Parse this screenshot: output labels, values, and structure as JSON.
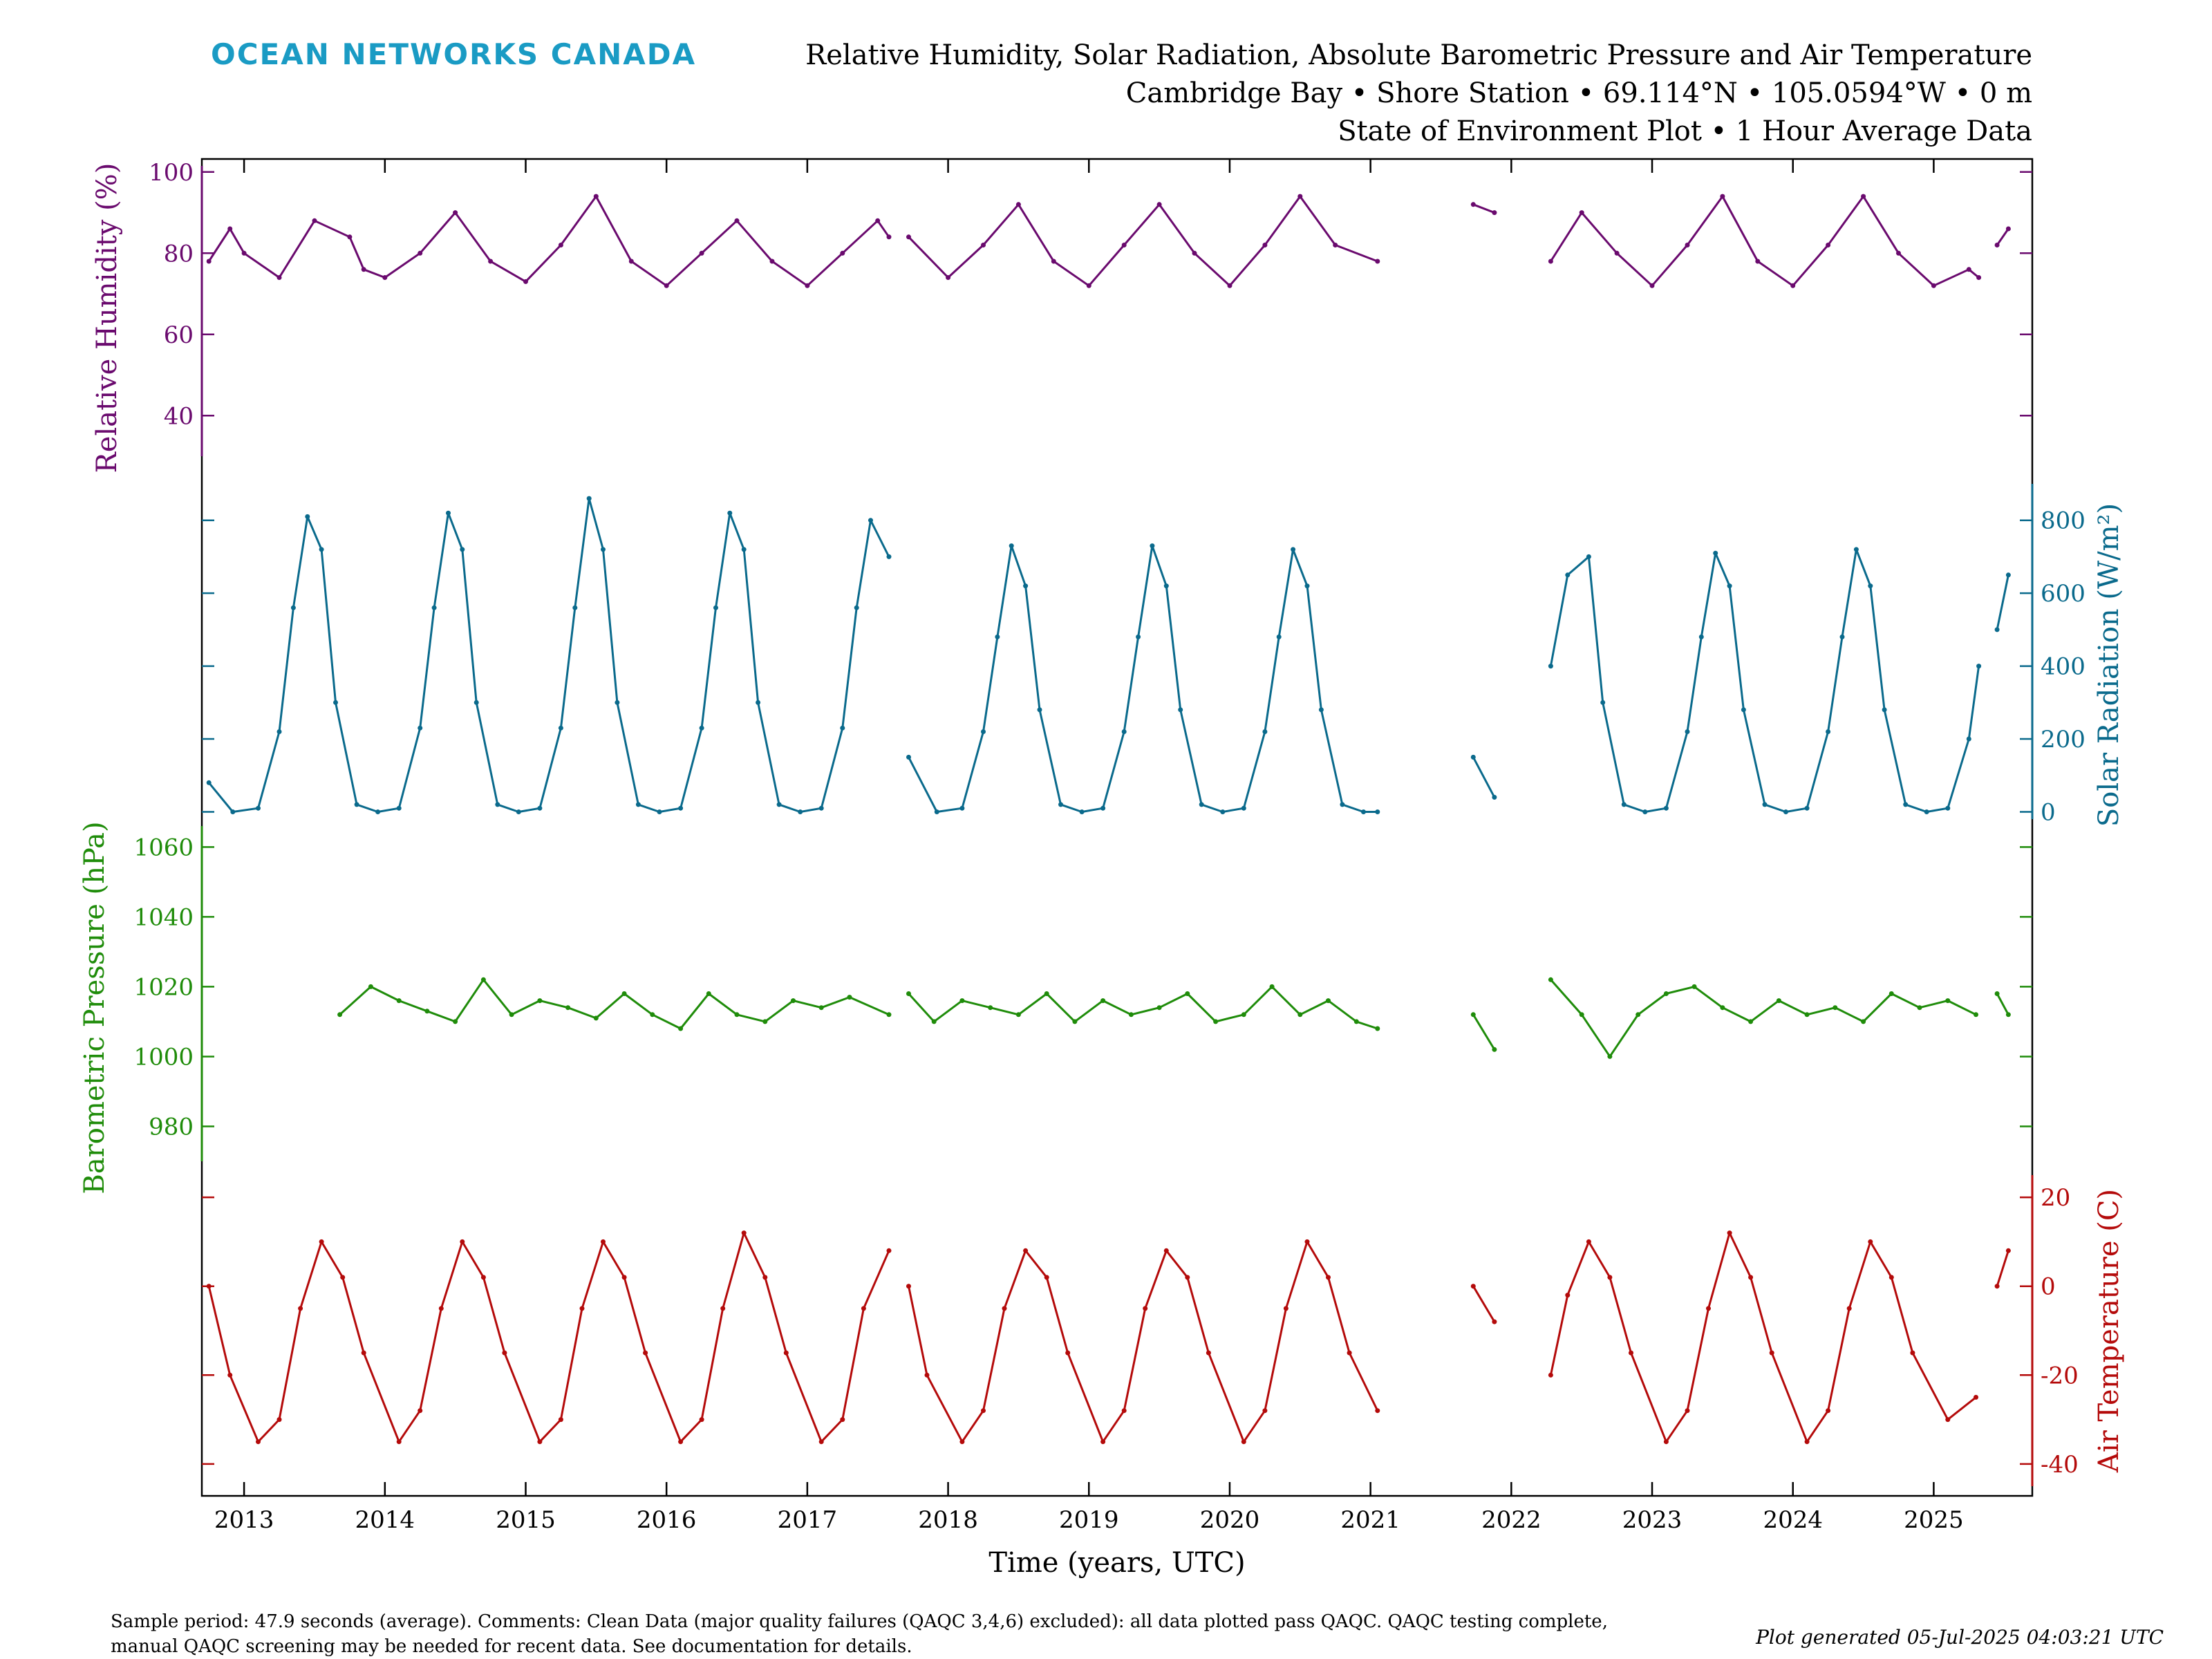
{
  "header": {
    "logo": "OCEAN NETWORKS CANADA",
    "title_lines": [
      "Relative Humidity, Solar Radiation, Absolute Barometric Pressure and Air Temperature",
      "Cambridge Bay • Shore Station • 69.114°N • 105.0594°W • 0 m",
      "State of Environment Plot • 1 Hour Average Data"
    ]
  },
  "footer": {
    "comment_lines": [
      "Sample period: 47.9 seconds (average).  Comments: Clean Data (major quality failures (QAQC 3,4,6) excluded): all data plotted pass QAQC. QAQC testing complete,",
      "manual QAQC screening may be needed for recent data. See documentation for details."
    ],
    "generated": "Plot generated 05-Jul-2025 04:03:21 UTC"
  },
  "chart_data": {
    "type": "line",
    "xlabel": "Time (years, UTC)",
    "xlim": [
      2012.7,
      2025.7
    ],
    "x_ticks": [
      2013,
      2014,
      2015,
      2016,
      2017,
      2018,
      2019,
      2020,
      2021,
      2022,
      2023,
      2024,
      2025
    ],
    "x_tick_labels": [
      "2013",
      "2014",
      "2015",
      "2016",
      "2017",
      "2018",
      "2019",
      "2020",
      "2021",
      "2022",
      "2023",
      "2024",
      "2025"
    ],
    "series": [
      {
        "name": "Relative Humidity",
        "ylabel": "Relative Humidity (%)",
        "color": "#6a0a6e",
        "axis_side": "left",
        "ylim": [
          30,
          101.5
        ],
        "y_ticks": [
          40,
          60,
          80,
          100
        ],
        "y_tick_labels": [
          "40",
          "60",
          "80",
          "100"
        ],
        "x": [
          2012.75,
          2012.9,
          2013.0,
          2013.25,
          2013.5,
          2013.75,
          2013.85,
          2014.0,
          2014.25,
          2014.5,
          2014.75,
          2015.0,
          2015.25,
          2015.5,
          2015.75,
          2016.0,
          2016.25,
          2016.5,
          2016.75,
          2017.0,
          2017.25,
          2017.5,
          2017.58,
          null,
          2017.72,
          2018.0,
          2018.25,
          2018.5,
          2018.75,
          2019.0,
          2019.25,
          2019.5,
          2019.75,
          2020.0,
          2020.25,
          2020.5,
          2020.75,
          2021.05,
          null,
          2021.73,
          2021.88,
          null,
          2022.28,
          2022.5,
          2022.75,
          2023.0,
          2023.25,
          2023.5,
          2023.75,
          2024.0,
          2024.25,
          2024.5,
          2024.75,
          2025.0,
          2025.25,
          2025.32,
          null,
          2025.45,
          2025.53
        ],
        "y": [
          78,
          86,
          80,
          74,
          88,
          84,
          76,
          74,
          80,
          90,
          78,
          73,
          82,
          94,
          78,
          72,
          80,
          88,
          78,
          72,
          80,
          88,
          84,
          null,
          84,
          74,
          82,
          92,
          78,
          72,
          82,
          92,
          80,
          72,
          82,
          94,
          82,
          78,
          null,
          92,
          90,
          null,
          78,
          90,
          80,
          72,
          82,
          94,
          78,
          72,
          82,
          94,
          80,
          72,
          76,
          74,
          null,
          82,
          86
        ]
      },
      {
        "name": "Solar Radiation",
        "ylabel": "Solar Radiation (W/m²)",
        "color": "#0a6a8c",
        "axis_side": "right",
        "ylim": [
          -20,
          900
        ],
        "y_ticks": [
          0,
          200,
          400,
          600,
          800
        ],
        "y_tick_labels": [
          "0",
          "200",
          "400",
          "600",
          "800"
        ],
        "x": [
          2012.75,
          2012.92,
          2013.1,
          2013.25,
          2013.35,
          2013.45,
          2013.55,
          2013.65,
          2013.8,
          2013.95,
          2014.1,
          2014.25,
          2014.35,
          2014.45,
          2014.55,
          2014.65,
          2014.8,
          2014.95,
          2015.1,
          2015.25,
          2015.35,
          2015.45,
          2015.55,
          2015.65,
          2015.8,
          2015.95,
          2016.1,
          2016.25,
          2016.35,
          2016.45,
          2016.55,
          2016.65,
          2016.8,
          2016.95,
          2017.1,
          2017.25,
          2017.35,
          2017.45,
          2017.58,
          null,
          2017.72,
          2017.92,
          2018.1,
          2018.25,
          2018.35,
          2018.45,
          2018.55,
          2018.65,
          2018.8,
          2018.95,
          2019.1,
          2019.25,
          2019.35,
          2019.45,
          2019.55,
          2019.65,
          2019.8,
          2019.95,
          2020.1,
          2020.25,
          2020.35,
          2020.45,
          2020.55,
          2020.65,
          2020.8,
          2020.95,
          2021.05,
          null,
          2021.73,
          2021.88,
          null,
          2022.28,
          2022.4,
          2022.55,
          2022.65,
          2022.8,
          2022.95,
          2023.1,
          2023.25,
          2023.35,
          2023.45,
          2023.55,
          2023.65,
          2023.8,
          2023.95,
          2024.1,
          2024.25,
          2024.35,
          2024.45,
          2024.55,
          2024.65,
          2024.8,
          2024.95,
          2025.1,
          2025.25,
          2025.32,
          null,
          2025.45,
          2025.53
        ],
        "y": [
          80,
          0,
          10,
          220,
          560,
          810,
          720,
          300,
          20,
          0,
          10,
          230,
          560,
          820,
          720,
          300,
          20,
          0,
          10,
          230,
          560,
          860,
          720,
          300,
          20,
          0,
          10,
          230,
          560,
          820,
          720,
          300,
          20,
          0,
          10,
          230,
          560,
          800,
          700,
          null,
          150,
          0,
          10,
          220,
          480,
          730,
          620,
          280,
          20,
          0,
          10,
          220,
          480,
          730,
          620,
          280,
          20,
          0,
          10,
          220,
          480,
          720,
          620,
          280,
          20,
          0,
          0,
          null,
          150,
          40,
          null,
          400,
          650,
          700,
          300,
          20,
          0,
          10,
          220,
          480,
          710,
          620,
          280,
          20,
          0,
          10,
          220,
          480,
          720,
          620,
          280,
          20,
          0,
          10,
          200,
          400,
          null,
          500,
          650
        ]
      },
      {
        "name": "Barometric Pressure",
        "ylabel": "Barometric Pressure (hPa)",
        "color": "#1f8c0a",
        "axis_side": "left",
        "ylim": [
          970,
          1066
        ],
        "y_ticks": [
          980,
          1000,
          1020,
          1040,
          1060
        ],
        "y_tick_labels": [
          "980",
          "1000",
          "1020",
          "1040",
          "1060"
        ],
        "x": [
          2013.68,
          2013.9,
          2014.1,
          2014.3,
          2014.5,
          2014.7,
          2014.9,
          2015.1,
          2015.3,
          2015.5,
          2015.7,
          2015.9,
          2016.1,
          2016.3,
          2016.5,
          2016.7,
          2016.9,
          2017.1,
          2017.3,
          2017.58,
          null,
          2017.72,
          2017.9,
          2018.1,
          2018.3,
          2018.5,
          2018.7,
          2018.9,
          2019.1,
          2019.3,
          2019.5,
          2019.7,
          2019.9,
          2020.1,
          2020.3,
          2020.5,
          2020.7,
          2020.9,
          2021.05,
          null,
          2021.73,
          2021.88,
          null,
          2022.28,
          2022.5,
          2022.7,
          2022.9,
          2023.1,
          2023.3,
          2023.5,
          2023.7,
          2023.9,
          2024.1,
          2024.3,
          2024.5,
          2024.7,
          2024.9,
          2025.1,
          2025.3,
          null,
          2025.45,
          2025.53
        ],
        "y": [
          1012,
          1020,
          1016,
          1013,
          1010,
          1022,
          1012,
          1016,
          1014,
          1011,
          1018,
          1012,
          1008,
          1018,
          1012,
          1010,
          1016,
          1014,
          1017,
          1012,
          null,
          1018,
          1010,
          1016,
          1014,
          1012,
          1018,
          1010,
          1016,
          1012,
          1014,
          1018,
          1010,
          1012,
          1020,
          1012,
          1016,
          1010,
          1008,
          null,
          1012,
          1002,
          null,
          1022,
          1012,
          1000,
          1012,
          1018,
          1020,
          1014,
          1010,
          1016,
          1012,
          1014,
          1010,
          1018,
          1014,
          1016,
          1012,
          null,
          1018,
          1012
        ]
      },
      {
        "name": "Air Temperature",
        "ylabel": "Air Temperature (C)",
        "color": "#b40a0a",
        "axis_side": "right",
        "ylim": [
          -45,
          25
        ],
        "y_ticks": [
          -40,
          -20,
          0,
          20
        ],
        "y_tick_labels": [
          "-40",
          "-20",
          "0",
          "20"
        ],
        "x": [
          2012.75,
          2012.9,
          2013.1,
          2013.25,
          2013.4,
          2013.55,
          2013.7,
          2013.85,
          2014.1,
          2014.25,
          2014.4,
          2014.55,
          2014.7,
          2014.85,
          2015.1,
          2015.25,
          2015.4,
          2015.55,
          2015.7,
          2015.85,
          2016.1,
          2016.25,
          2016.4,
          2016.55,
          2016.7,
          2016.85,
          2017.1,
          2017.25,
          2017.4,
          2017.58,
          null,
          2017.72,
          2017.85,
          2018.1,
          2018.25,
          2018.4,
          2018.55,
          2018.7,
          2018.85,
          2019.1,
          2019.25,
          2019.4,
          2019.55,
          2019.7,
          2019.85,
          2020.1,
          2020.25,
          2020.4,
          2020.55,
          2020.7,
          2020.85,
          2021.05,
          null,
          2021.73,
          2021.88,
          null,
          2022.28,
          2022.4,
          2022.55,
          2022.7,
          2022.85,
          2023.1,
          2023.25,
          2023.4,
          2023.55,
          2023.7,
          2023.85,
          2024.1,
          2024.25,
          2024.4,
          2024.55,
          2024.7,
          2024.85,
          2025.1,
          2025.3,
          null,
          2025.45,
          2025.53
        ],
        "y": [
          0,
          -20,
          -35,
          -30,
          -5,
          10,
          2,
          -15,
          -35,
          -28,
          -5,
          10,
          2,
          -15,
          -35,
          -30,
          -5,
          10,
          2,
          -15,
          -35,
          -30,
          -5,
          12,
          2,
          -15,
          -35,
          -30,
          -5,
          8,
          null,
          0,
          -20,
          -35,
          -28,
          -5,
          8,
          2,
          -15,
          -35,
          -28,
          -5,
          8,
          2,
          -15,
          -35,
          -28,
          -5,
          10,
          2,
          -15,
          -28,
          null,
          0,
          -8,
          null,
          -20,
          -2,
          10,
          2,
          -15,
          -35,
          -28,
          -5,
          12,
          2,
          -15,
          -35,
          -28,
          -5,
          10,
          2,
          -15,
          -30,
          -25,
          null,
          0,
          8
        ]
      }
    ]
  }
}
